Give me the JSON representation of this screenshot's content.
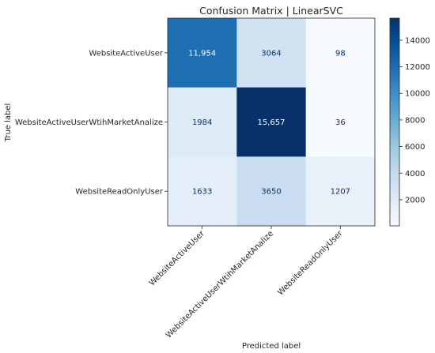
{
  "chart_data": {
    "type": "heatmap",
    "title": "Confusion Matrix | LinearSVC",
    "xlabel": "Predicted label",
    "ylabel": "True label",
    "x_labels": [
      "WebsiteActiveUser",
      "WebsiteActiveUserWtihMarketAnalize",
      "WebsiteReadOnlyUser"
    ],
    "y_labels": [
      "WebsiteActiveUser",
      "WebsiteActiveUserWtihMarketAnalize",
      "WebsiteReadOnlyUser"
    ],
    "values": [
      [
        11954,
        3064,
        98
      ],
      [
        1984,
        15657,
        36
      ],
      [
        1633,
        3650,
        1207
      ]
    ],
    "cell_labels": [
      [
        "11,954",
        "3064",
        "98"
      ],
      [
        "1984",
        "15,657",
        "36"
      ],
      [
        "1633",
        "3650",
        "1207"
      ]
    ],
    "colormap": "Blues",
    "colorbar": {
      "range": [
        36,
        15657
      ],
      "ticks": [
        2000,
        4000,
        6000,
        8000,
        10000,
        12000,
        14000
      ],
      "tick_labels": [
        "2000",
        "4000",
        "6000",
        "8000",
        "10000",
        "12000",
        "14000"
      ]
    },
    "grid": false,
    "legend": "colorbar-right"
  }
}
